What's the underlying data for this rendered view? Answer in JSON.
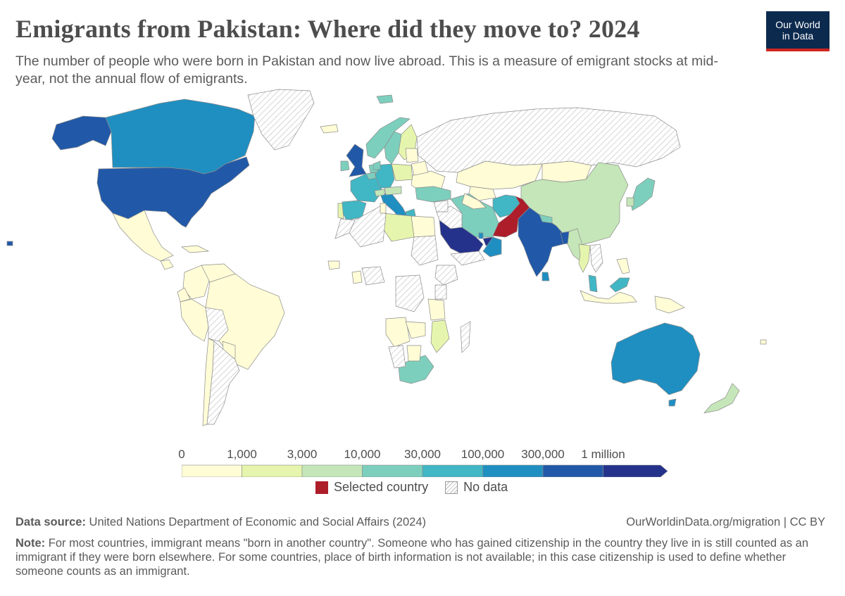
{
  "header": {
    "title": "Emigrants from Pakistan: Where did they move to? 2024",
    "subtitle": "The number of people who were born in Pakistan and now live abroad. This is a measure of emigrant stocks at mid-year, not the annual flow of emigrants."
  },
  "logo": {
    "line1": "Our World",
    "line2": "in Data",
    "bg_color": "#0c2a4e",
    "accent_color": "#ce261e"
  },
  "legend": {
    "ticks": [
      "0",
      "1,000",
      "3,000",
      "10,000",
      "30,000",
      "100,000",
      "300,000",
      "1 million"
    ],
    "colors": [
      "#fffcd6",
      "#e5f5ad",
      "#c5e6b8",
      "#7dcfbd",
      "#41b6c4",
      "#1f8fc1",
      "#2159a8",
      "#25328c"
    ],
    "selected_label": "Selected country",
    "selected_color": "#ad1d2a",
    "nodata_label": "No data"
  },
  "chart_data": {
    "type": "choropleth",
    "title": "Emigrants from Pakistan: Where did they move to? 2024",
    "year": 2024,
    "selected_country": "Pakistan",
    "bins": [
      "0",
      "1,000",
      "3,000",
      "10,000",
      "30,000",
      "100,000",
      "300,000",
      "1 million"
    ],
    "countries": [
      {
        "name": "United States",
        "bin": "300,000–1 million"
      },
      {
        "name": "Alaska (United States)",
        "bin": "300,000–1 million"
      },
      {
        "name": "Canada",
        "bin": "100,000–300,000"
      },
      {
        "name": "Greenland",
        "bin": "No data"
      },
      {
        "name": "Mexico",
        "bin": "0–1,000"
      },
      {
        "name": "Guatemala",
        "bin": "0–1,000"
      },
      {
        "name": "Cuba",
        "bin": "0–1,000"
      },
      {
        "name": "Colombia",
        "bin": "0–1,000"
      },
      {
        "name": "Venezuela",
        "bin": "0–1,000"
      },
      {
        "name": "Ecuador",
        "bin": "0–1,000"
      },
      {
        "name": "Peru",
        "bin": "0–1,000"
      },
      {
        "name": "Brazil",
        "bin": "0–1,000"
      },
      {
        "name": "Bolivia",
        "bin": "No data"
      },
      {
        "name": "Paraguay",
        "bin": "0–1,000"
      },
      {
        "name": "Chile",
        "bin": "0–1,000"
      },
      {
        "name": "Argentina",
        "bin": "No data"
      },
      {
        "name": "United Kingdom",
        "bin": "300,000–1 million"
      },
      {
        "name": "Ireland",
        "bin": "10,000–30,000"
      },
      {
        "name": "France",
        "bin": "30,000–100,000"
      },
      {
        "name": "Spain",
        "bin": "30,000–100,000"
      },
      {
        "name": "Portugal",
        "bin": "1,000–3,000"
      },
      {
        "name": "Italy",
        "bin": "100,000–300,000"
      },
      {
        "name": "Germany",
        "bin": "30,000–100,000"
      },
      {
        "name": "Netherlands",
        "bin": "10,000–30,000"
      },
      {
        "name": "Belgium",
        "bin": "10,000–30,000"
      },
      {
        "name": "Switzerland",
        "bin": "3,000–10,000"
      },
      {
        "name": "Austria",
        "bin": "3,000–10,000"
      },
      {
        "name": "Poland",
        "bin": "1,000–3,000"
      },
      {
        "name": "Greece",
        "bin": "30,000–100,000"
      },
      {
        "name": "Norway",
        "bin": "10,000–30,000"
      },
      {
        "name": "Sweden",
        "bin": "10,000–30,000"
      },
      {
        "name": "Finland",
        "bin": "1,000–3,000"
      },
      {
        "name": "Denmark",
        "bin": "10,000–30,000"
      },
      {
        "name": "Iceland",
        "bin": "0–1,000"
      },
      {
        "name": "Svalbard",
        "bin": "10,000–30,000"
      },
      {
        "name": "Ukraine",
        "bin": "0–1,000"
      },
      {
        "name": "Belarus",
        "bin": "0–1,000"
      },
      {
        "name": "Baltic states",
        "bin": "0–1,000"
      },
      {
        "name": "Russia",
        "bin": "No data"
      },
      {
        "name": "Kazakhstan",
        "bin": "0–1,000"
      },
      {
        "name": "Mongolia",
        "bin": "0–1,000"
      },
      {
        "name": "China",
        "bin": "3,000–10,000"
      },
      {
        "name": "Japan",
        "bin": "10,000–30,000"
      },
      {
        "name": "South Korea",
        "bin": "3,000–10,000"
      },
      {
        "name": "Turkey",
        "bin": "10,000–30,000"
      },
      {
        "name": "Iran",
        "bin": "10,000–30,000"
      },
      {
        "name": "Afghanistan",
        "bin": "30,000–100,000"
      },
      {
        "name": "Turkmenistan",
        "bin": "0–1,000"
      },
      {
        "name": "Uzbekistan",
        "bin": "0–1,000"
      },
      {
        "name": "Pakistan",
        "bin": "Selected country"
      },
      {
        "name": "India",
        "bin": "300,000–1 million"
      },
      {
        "name": "Nepal",
        "bin": "10,000–30,000"
      },
      {
        "name": "Bangladesh",
        "bin": "300,000–1 million"
      },
      {
        "name": "Sri Lanka",
        "bin": "100,000–300,000"
      },
      {
        "name": "Myanmar",
        "bin": "3,000–10,000"
      },
      {
        "name": "Thailand",
        "bin": "1,000–3,000"
      },
      {
        "name": "Vietnam",
        "bin": "No data"
      },
      {
        "name": "Malaysia",
        "bin": "30,000–100,000"
      },
      {
        "name": "Borneo (Malaysia)",
        "bin": "30,000–100,000"
      },
      {
        "name": "Indonesia",
        "bin": "0–1,000"
      },
      {
        "name": "Philippines",
        "bin": "0–1,000"
      },
      {
        "name": "Papua New Guinea",
        "bin": "0–1,000"
      },
      {
        "name": "Saudi Arabia",
        "bin": "1 million+"
      },
      {
        "name": "United Arab Emirates",
        "bin": "1 million+"
      },
      {
        "name": "Oman",
        "bin": "100,000–300,000"
      },
      {
        "name": "Qatar",
        "bin": "100,000–300,000"
      },
      {
        "name": "Yemen",
        "bin": "No data"
      },
      {
        "name": "Iraq",
        "bin": "No data"
      },
      {
        "name": "Syria",
        "bin": "No data"
      },
      {
        "name": "Egypt",
        "bin": "0–1,000"
      },
      {
        "name": "Libya",
        "bin": "1,000–3,000"
      },
      {
        "name": "Algeria",
        "bin": "No data"
      },
      {
        "name": "Morocco",
        "bin": "No data"
      },
      {
        "name": "Tunisia",
        "bin": "0–1,000"
      },
      {
        "name": "Sudan",
        "bin": "No data"
      },
      {
        "name": "Nigeria",
        "bin": "No data"
      },
      {
        "name": "Ghana",
        "bin": "0–1,000"
      },
      {
        "name": "Senegal",
        "bin": "0–1,000"
      },
      {
        "name": "Ethiopia",
        "bin": "No data"
      },
      {
        "name": "Kenya",
        "bin": "No data"
      },
      {
        "name": "Tanzania",
        "bin": "0–1,000"
      },
      {
        "name": "DR Congo",
        "bin": "No data"
      },
      {
        "name": "Angola",
        "bin": "0–1,000"
      },
      {
        "name": "Zambia",
        "bin": "0–1,000"
      },
      {
        "name": "Mozambique",
        "bin": "1,000–3,000"
      },
      {
        "name": "Madagascar",
        "bin": "No data"
      },
      {
        "name": "South Africa",
        "bin": "10,000–30,000"
      },
      {
        "name": "Namibia",
        "bin": "No data"
      },
      {
        "name": "Botswana",
        "bin": "0–1,000"
      },
      {
        "name": "Australia",
        "bin": "100,000–300,000"
      },
      {
        "name": "Tasmania (Australia)",
        "bin": "100,000–300,000"
      },
      {
        "name": "New Zealand",
        "bin": "3,000–10,000"
      },
      {
        "name": "Fiji",
        "bin": "0–1,000"
      },
      {
        "name": "Hawaii (United States)",
        "bin": "300,000–1 million"
      }
    ]
  },
  "footer": {
    "source_label": "Data source:",
    "source_text": "United Nations Department of Economic and Social Affairs (2024)",
    "url": "OurWorldinData.org/migration | CC BY",
    "note_label": "Note:",
    "note_text": "For most countries, immigrant means \"born in another country\". Someone who has gained citizenship in the country they live in is still counted as an immigrant if they were born elsewhere. For some countries, place of birth information is not available; in this case citizenship is used to define whether someone counts as an immigrant."
  }
}
